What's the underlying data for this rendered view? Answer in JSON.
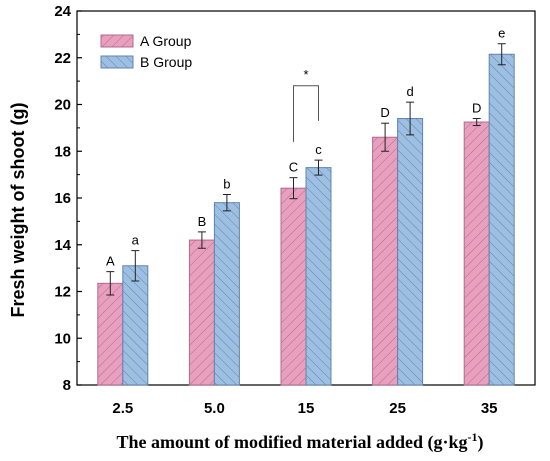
{
  "chart_data": {
    "type": "bar",
    "categories": [
      "2.5",
      "5.0",
      "15",
      "25",
      "35"
    ],
    "series": [
      {
        "name": "A Group",
        "values": [
          12.35,
          14.2,
          16.42,
          18.6,
          19.25
        ],
        "errors": [
          0.5,
          0.35,
          0.45,
          0.6,
          0.15
        ],
        "labels": [
          "A",
          "B",
          "C",
          "D",
          "D"
        ],
        "color": "#e9a0bf",
        "hatch_color": "#b06a8e"
      },
      {
        "name": "B Group",
        "values": [
          13.1,
          15.8,
          17.3,
          19.4,
          22.15
        ],
        "errors": [
          0.65,
          0.35,
          0.32,
          0.7,
          0.45
        ],
        "labels": [
          "a",
          "b",
          "c",
          "d",
          "e"
        ],
        "color": "#9dbfe2",
        "hatch_color": "#5f84ad"
      }
    ],
    "ylabel": "Fresh weight of shoot (g)",
    "xlabel": {
      "text": "The amount of modified material added (g·kg",
      "superscript": "-1",
      "suffix": ")"
    },
    "ylim": [
      8,
      24
    ],
    "yticks": [
      "8",
      "10",
      "12",
      "14",
      "16",
      "18",
      "20",
      "22",
      "24"
    ],
    "annotation": {
      "text": "*",
      "category": "15"
    },
    "legend": {
      "position": "top-left"
    },
    "grid": false
  }
}
